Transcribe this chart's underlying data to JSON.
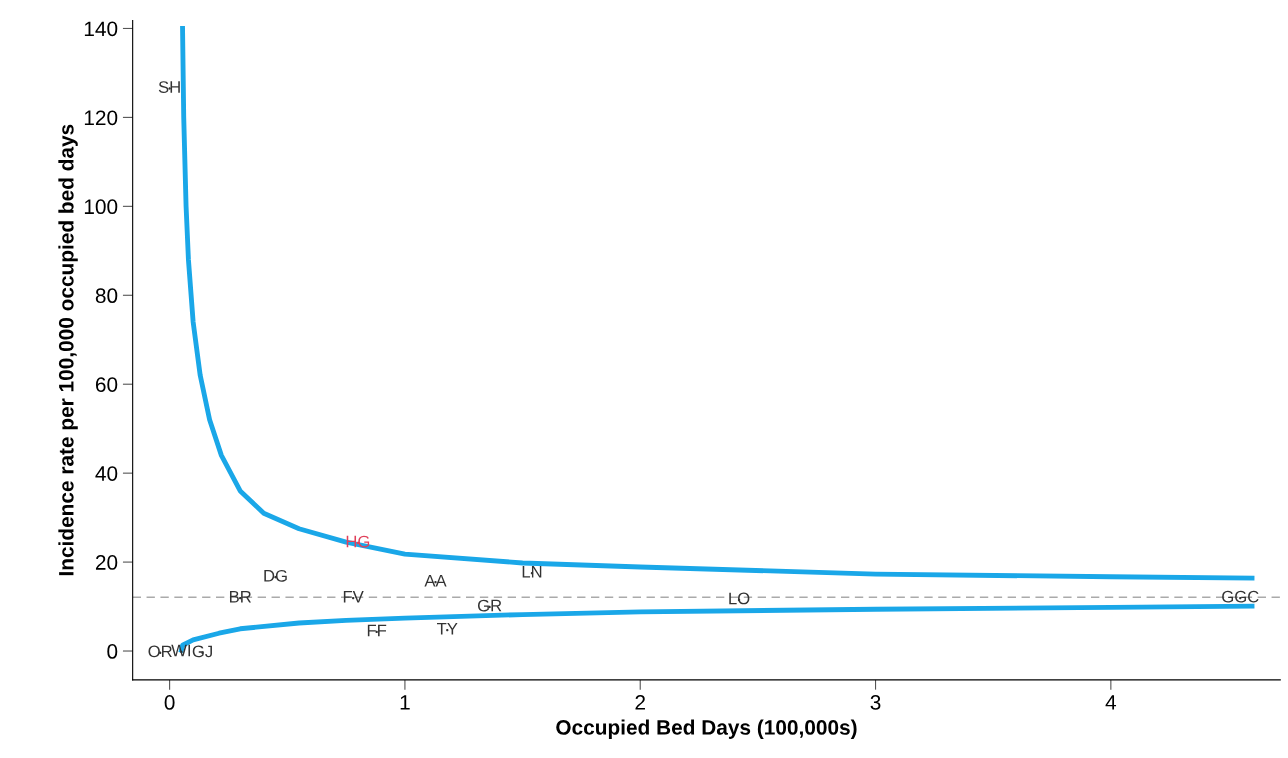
{
  "chart_data": {
    "type": "scatter",
    "xlabel": "Occupied Bed Days (100,000s)",
    "ylabel": "Incidence rate per 100,000 occupied bed days",
    "xlim": [
      -0.157,
      4.72
    ],
    "ylim": [
      -6.5,
      141.8
    ],
    "xticks": [
      0,
      1,
      2,
      3,
      4
    ],
    "yticks": [
      0,
      20,
      40,
      60,
      80,
      100,
      120,
      140
    ],
    "grid": false,
    "legend": false,
    "ref_lines": [
      {
        "axis": "y",
        "value": 12.1,
        "color": "#aaaaaa",
        "line_style": "dashed"
      }
    ],
    "series": [
      {
        "marker": "none",
        "x": [
          0.0,
          0.8,
          0.45,
          0.3,
          0.78,
          1.13,
          1.54,
          1.36,
          1.18,
          0.88,
          2.42,
          4.55,
          -0.04,
          0.05,
          0.14
        ],
        "values": [
          126.5,
          24.3,
          16.6,
          11.9,
          11.9,
          15.5,
          17.5,
          9.9,
          4.7,
          4.3,
          11.5,
          11.9,
          -0.4,
          -0.2,
          -0.4
        ],
        "value_labels": [
          "SH",
          "HG",
          "DG",
          "BR",
          "FV",
          "AA",
          "LN",
          "GR",
          "TY",
          "FF",
          "LO",
          "GGC",
          "OR",
          "WI",
          "GJ"
        ],
        "colors": [
          "#333333",
          "#e0405a",
          "#333333",
          "#333333",
          "#333333",
          "#333333",
          "#333333",
          "#333333",
          "#333333",
          "#333333",
          "#333333",
          "#333333",
          "#333333",
          "#333333",
          "#333333"
        ]
      },
      {
        "type": "line",
        "color": "#1aa7e8",
        "x": [
          0.055,
          0.06,
          0.07,
          0.08,
          0.1,
          0.13,
          0.17,
          0.22,
          0.3,
          0.4,
          0.55,
          0.75,
          1.0,
          1.5,
          2,
          3,
          4,
          4.6
        ],
        "values": [
          140,
          120,
          100,
          88,
          74,
          62,
          52,
          44,
          36,
          31,
          27.5,
          24.5,
          21.8,
          19.8,
          18.9,
          17.3,
          16.7,
          16.4
        ]
      },
      {
        "type": "line",
        "color": "#1aa7e8",
        "x": [
          0.05,
          0.055,
          0.1,
          0.21,
          0.3,
          0.55,
          0.75,
          1.0,
          1.5,
          2,
          3,
          4,
          4.6
        ],
        "values": [
          0.2,
          1.3,
          2.5,
          4,
          5,
          6.3,
          6.9,
          7.4,
          8.2,
          8.8,
          9.4,
          9.8,
          10.1
        ]
      }
    ]
  }
}
